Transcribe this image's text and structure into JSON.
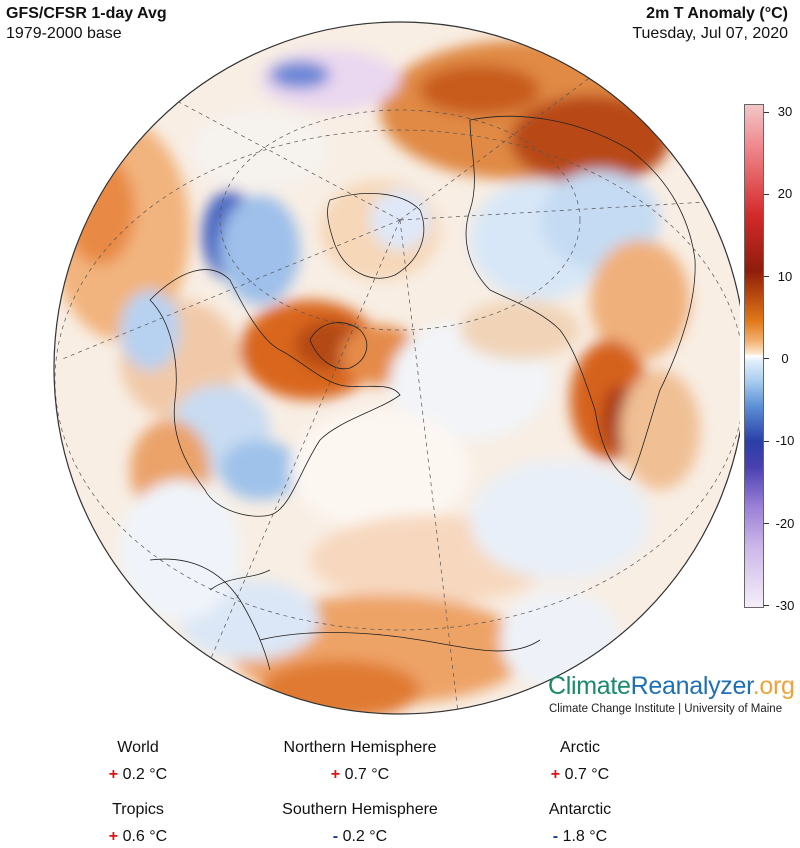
{
  "header": {
    "title_left": "GFS/CFSR 1-day Avg",
    "subtitle_left": "1979-2000 base",
    "title_right": "2m T Anomaly (°C)",
    "subtitle_right": "Tuesday, Jul 07, 2020"
  },
  "colorbar": {
    "ticks": [
      "30",
      "20",
      "10",
      "0",
      "-10",
      "-20",
      "-30"
    ],
    "colors": {
      "high": "#8f1d0b",
      "mid": "#ffffff",
      "low": "#2a3fa8",
      "extreme_low": "#cbb7ea",
      "extreme_high": "#f08a8f"
    }
  },
  "brand": {
    "part1": "Climate",
    "part2": "Reanalyzer",
    "part3": ".org",
    "sub": "Climate Change Institute | University of Maine"
  },
  "stats": {
    "world": {
      "label": "World",
      "sign": "+",
      "value": "0.2 °C"
    },
    "nh": {
      "label": "Northern Hemisphere",
      "sign": "+",
      "value": "0.7 °C"
    },
    "arctic": {
      "label": "Arctic",
      "sign": "+",
      "value": "0.7 °C"
    },
    "tropics": {
      "label": "Tropics",
      "sign": "+",
      "value": "0.6 °C"
    },
    "sh": {
      "label": "Southern Hemisphere",
      "sign": "-",
      "value": "0.2 °C"
    },
    "antarctic": {
      "label": "Antarctic",
      "sign": "-",
      "value": "1.8 °C"
    }
  }
}
